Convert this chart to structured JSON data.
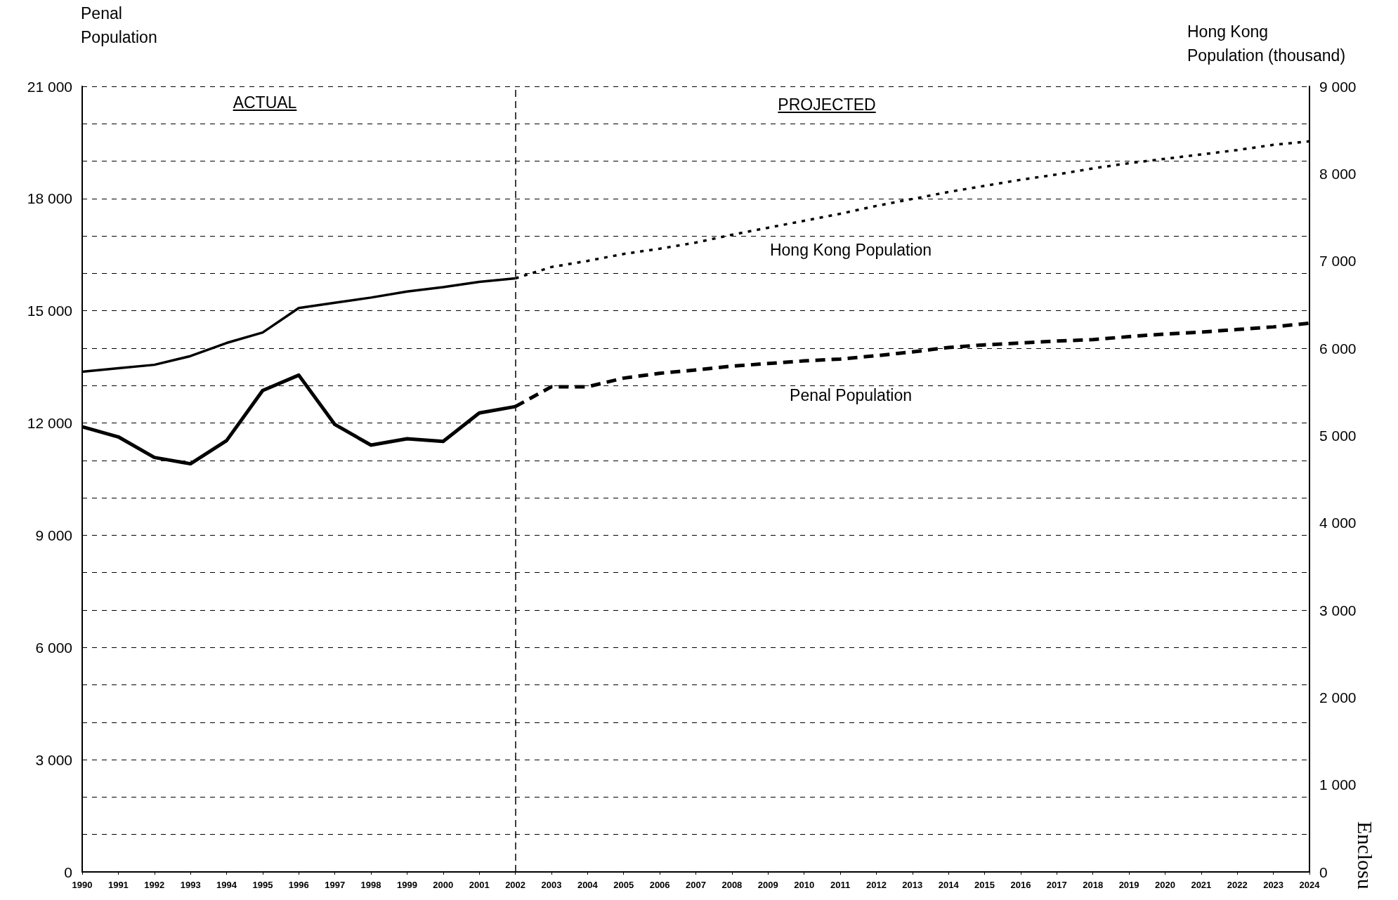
{
  "chart_data": {
    "type": "line",
    "ylabel": "Penal\nPopulation",
    "y2label": "Hong Kong\nPopulation (thousand)",
    "xlim": [
      1990,
      2024
    ],
    "xticks": [
      1990,
      1991,
      1992,
      1993,
      1994,
      1995,
      1996,
      1997,
      1998,
      1999,
      2000,
      2001,
      2002,
      2003,
      2004,
      2005,
      2006,
      2007,
      2008,
      2009,
      2010,
      2011,
      2012,
      2013,
      2014,
      2015,
      2016,
      2017,
      2018,
      2019,
      2020,
      2021,
      2022,
      2023,
      2024
    ],
    "ylim": [
      0,
      21000
    ],
    "yticks": [
      0,
      {
        "value": 1000,
        "label": null
      },
      {
        "value": 2000,
        "label": null
      },
      {
        "value": 3000,
        "label": "3 000"
      },
      {
        "value": 4000,
        "label": null
      },
      {
        "value": 5000,
        "label": null
      },
      {
        "value": 6000,
        "label": "6 000"
      },
      {
        "value": 7000,
        "label": null
      },
      {
        "value": 8000,
        "label": null
      },
      {
        "value": 9000,
        "label": "9 000"
      },
      {
        "value": 10000,
        "label": null
      },
      {
        "value": 11000,
        "label": null
      },
      {
        "value": 12000,
        "label": "12 000"
      },
      {
        "value": 13000,
        "label": null
      },
      {
        "value": 14000,
        "label": null
      },
      {
        "value": 15000,
        "label": "15 000"
      },
      {
        "value": 16000,
        "label": null
      },
      {
        "value": 17000,
        "label": null
      },
      {
        "value": 18000,
        "label": "18 000"
      },
      {
        "value": 19000,
        "label": null
      },
      {
        "value": 20000,
        "label": null
      },
      {
        "value": 21000,
        "label": "21 000"
      }
    ],
    "y2lim": [
      0,
      9000
    ],
    "y2ticks": [
      0,
      {
        "value": 1000,
        "label": "1 000"
      },
      {
        "value": 2000,
        "label": "2 000"
      },
      {
        "value": 3000,
        "label": "3 000"
      },
      {
        "value": 4000,
        "label": "4 000"
      },
      {
        "value": 5000,
        "label": "5 000"
      },
      {
        "value": 6000,
        "label": "6 000"
      },
      {
        "value": 7000,
        "label": "7 000"
      },
      {
        "value": 8000,
        "label": "8 000"
      },
      {
        "value": 9000,
        "label": "9 000"
      }
    ],
    "grid": "y",
    "legend": false,
    "marker": "none",
    "series": [
      {
        "color": "#000000",
        "line_style": "solid",
        "x": [
          1990,
          1991,
          1992,
          1993,
          1994,
          1995,
          1996,
          1997,
          1998,
          1999,
          2000,
          2001,
          2002
        ],
        "values": [
          11900,
          11630,
          11080,
          10910,
          11530,
          12870,
          13280,
          11960,
          11410,
          11580,
          11510,
          12270,
          12440
        ]
      },
      {
        "name": "Penal Population",
        "color": "#000000",
        "line_style": "dashed",
        "x": [
          2002,
          2003,
          2004,
          2005,
          2006,
          2007,
          2008,
          2009,
          2010,
          2011,
          2012,
          2013,
          2014,
          2015,
          2016,
          2017,
          2018,
          2019,
          2020,
          2021,
          2022,
          2023,
          2024
        ],
        "values": [
          12440,
          12970,
          12970,
          13200,
          13330,
          13420,
          13520,
          13590,
          13660,
          13710,
          13800,
          13900,
          14020,
          14090,
          14140,
          14190,
          14230,
          14310,
          14380,
          14430,
          14500,
          14570,
          14670
        ]
      },
      {
        "color": "#000000",
        "line_style": "solid",
        "axis": "y2",
        "x": [
          1990,
          1991,
          1992,
          1993,
          1994,
          1995,
          1996,
          1997,
          1998,
          1999,
          2000,
          2001,
          2002
        ],
        "values": [
          5730,
          5770,
          5810,
          5910,
          6060,
          6180,
          6460,
          6520,
          6580,
          6650,
          6700,
          6760,
          6800
        ]
      },
      {
        "name": "Hong Kong Population",
        "color": "#000000",
        "line_style": "dotted",
        "axis": "y2",
        "x": [
          2002,
          2003,
          2004,
          2005,
          2006,
          2007,
          2008,
          2009,
          2010,
          2011,
          2012,
          2013,
          2014,
          2015,
          2016,
          2017,
          2018,
          2019,
          2020,
          2021,
          2022,
          2023,
          2024
        ],
        "values": [
          6800,
          6930,
          7000,
          7080,
          7140,
          7210,
          7300,
          7380,
          7460,
          7540,
          7630,
          7710,
          7790,
          7860,
          7930,
          7990,
          8060,
          8120,
          8170,
          8220,
          8270,
          8330,
          8370
        ]
      }
    ],
    "ref_lines": [
      {
        "axis": "x",
        "value": 2002,
        "line_style": "dashed",
        "color": "#000000"
      }
    ],
    "annotations": [
      "ACTUAL",
      "PROJECTED",
      "Enclosu"
    ]
  }
}
